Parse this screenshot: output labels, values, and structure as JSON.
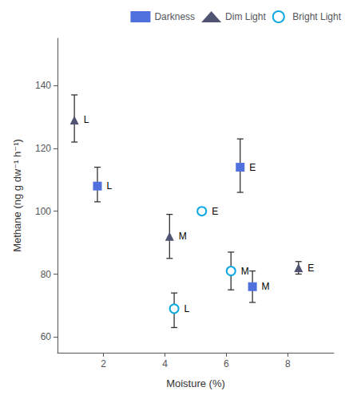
{
  "chart_data": {
    "type": "scatter",
    "xlabel": "Moisture (%)",
    "ylabel": "Methane (ng g dw⁻¹ h⁻¹)",
    "xlim": [
      0.5,
      9.5
    ],
    "ylim": [
      55,
      155
    ],
    "xticks": [
      2,
      4,
      6,
      8
    ],
    "yticks": [
      60,
      80,
      100,
      120,
      140
    ],
    "grid": false,
    "legend": "upper right",
    "series": [
      {
        "name": "Darkness",
        "marker": "square",
        "x": [
          1.8,
          6.45,
          6.85
        ],
        "values": [
          108,
          114,
          76
        ],
        "yerr_lo": [
          5,
          8,
          5
        ],
        "yerr_hi": [
          6,
          9,
          5
        ],
        "labels": [
          "L",
          "E",
          "M"
        ]
      },
      {
        "name": "Dim Light",
        "marker": "triangle",
        "x": [
          1.05,
          4.15,
          8.35
        ],
        "values": [
          129,
          92,
          82
        ],
        "yerr_lo": [
          7,
          7,
          2
        ],
        "yerr_hi": [
          8,
          7,
          2
        ],
        "labels": [
          "L",
          "M",
          "E"
        ]
      },
      {
        "name": "Bright Light",
        "marker": "circle",
        "x": [
          4.3,
          5.2,
          6.15
        ],
        "values": [
          69,
          100,
          81
        ],
        "yerr_lo": [
          6,
          0,
          6
        ],
        "yerr_hi": [
          5,
          0,
          6
        ],
        "labels": [
          "L",
          "E",
          "M"
        ]
      }
    ]
  }
}
